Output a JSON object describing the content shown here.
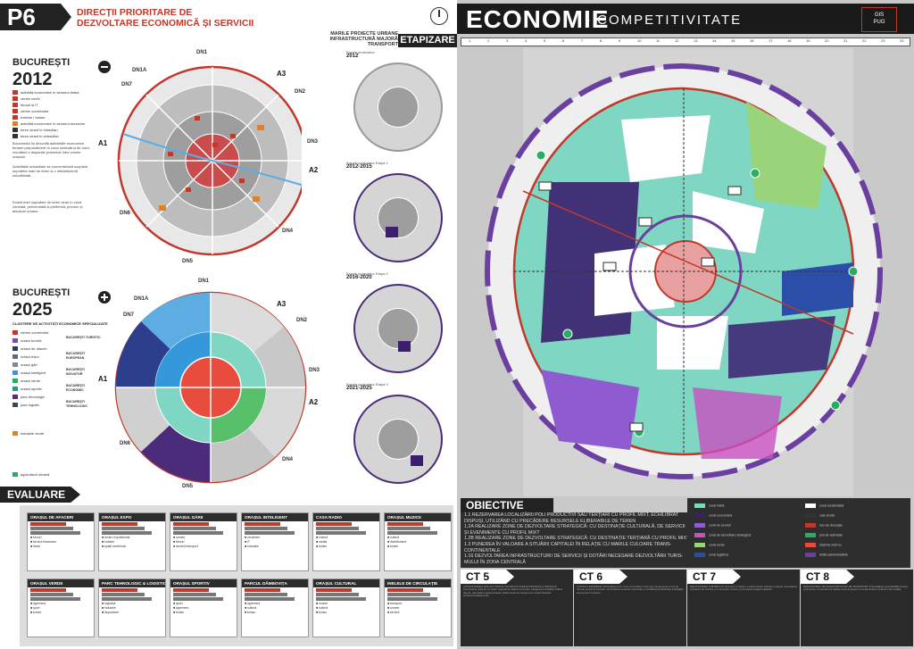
{
  "header": {
    "page_code": "P6",
    "title_line1": "DIRECȚII PRIORITARE DE",
    "title_line2": "DEZVOLTARE ECONOMICĂ ȘI SERVICII",
    "etapizare": "ETAPIZARE",
    "mari_proiecte_line1": "MARILE PROIECTE URBANE",
    "mari_proiecte_line2": "INFRASTRUCTURĂ MAJORĂ TRANSPORT"
  },
  "section2012": {
    "city": "BUCUREȘTI",
    "year": "2012",
    "legend": [
      {
        "label": "activități economice în sectorul terțiar",
        "color": "#c0392b"
      },
      {
        "label": "centre vechi",
        "color": "#c0392b"
      },
      {
        "label": "birouri și IT",
        "color": "#c0392b"
      },
      {
        "label": "centre comerciale",
        "color": "#c0392b"
      },
      {
        "label": "hoteluri / turism",
        "color": "#c0392b"
      },
      {
        "label": "activități economice în sectorul secundar",
        "color": "#e67e22"
      },
      {
        "label": "teren virant în intravilan",
        "color": "#333333"
      },
      {
        "label": "teren virant în extravilan",
        "color": "#333333"
      }
    ],
    "text1": "Bucureștiul își dezvoltă activitățile economice terțiare preponderent în zona centrală și de nord, rezultând o dispariție puternică între zonele orașului.",
    "text2": "Activitățile industriale se concentrează ocupând suprafețe mari de teren și o infrastructură subutilizată.",
    "text3": "Există mari suprafețe de teren viran în zona centrală, pericentrală și periferică, precum și afecțiuni urbane."
  },
  "section2025": {
    "city": "BUCUREȘTI",
    "year": "2025",
    "subtitle": "CLUSTERE DE ACTIVITĂȚI ECONOMICE SPECIALIZATE",
    "legend": [
      {
        "label": "centre comerciale",
        "color": "#c0392b"
      },
      {
        "label": "orașul turistic",
        "color": "#8e44ad"
      },
      {
        "label": "orașul de afaceri",
        "color": "#2c3e50"
      },
      {
        "label": "orașul expo",
        "color": "#5d6d7e"
      },
      {
        "label": "orașul gări",
        "color": "#7f8c8d"
      },
      {
        "label": "orașul inteligent",
        "color": "#3498db"
      },
      {
        "label": "orașul verde",
        "color": "#27ae60"
      },
      {
        "label": "orașul sportiv",
        "color": "#16a085"
      },
      {
        "label": "parc tehnologic",
        "color": "#5b2c6f"
      },
      {
        "label": "parc logistic",
        "color": "#34495e"
      }
    ],
    "groups": [
      "BUCUREȘTI TURISTIC",
      "BUCUREȘTI EUROPEAN",
      "BUCUREȘTI INOVATOR",
      "BUCUREȘTI ECONOMIC",
      "BUCUREȘTI TEHNOLOGIC"
    ],
    "industry_label": "industrie verde",
    "agri_label": "agricultură urbană"
  },
  "etapizare": [
    {
      "label": "Fazele proiectelor",
      "period": "2012"
    },
    {
      "label": "Fazele proiectelor Etapa 1",
      "period": "2012-2015"
    },
    {
      "label": "Fazele proiectelor Etapa 2",
      "period": "2016-2020"
    },
    {
      "label": "Fazele proiectelor Etapa 3",
      "period": "2021-2025"
    }
  ],
  "evaluare": {
    "title": "EVALUARE",
    "cards": [
      {
        "title": "ORAȘUL DE AFACERI",
        "rows": [
          "birouri",
          "servicii financiare",
          "bănci"
        ]
      },
      {
        "title": "ORAȘUL EXPO",
        "rows": [
          "centru expozițional",
          "hoteluri",
          "spații conferință"
        ]
      },
      {
        "title": "ORAȘUL GĂRII",
        "rows": [
          "comerț",
          "birouri",
          "servicii transport"
        ]
      },
      {
        "title": "ORAȘUL INTELIGENT",
        "rows": [
          "cercetare",
          "IT",
          "educație"
        ]
      },
      {
        "title": "CASA RADIO",
        "rows": [
          "cultură",
          "media",
          "turism"
        ]
      },
      {
        "title": "ORAȘUL MUZICII",
        "rows": [
          "cultură",
          "divertisment",
          "turism"
        ]
      },
      {
        "title": "ORAȘUL VERDE",
        "rows": [
          "agrement",
          "sport",
          "turism"
        ]
      },
      {
        "title": "PARC TEHNOLOGIC & LOGISTIC",
        "rows": [
          "logistică",
          "industrie",
          "depozitare"
        ]
      },
      {
        "title": "ORAȘUL SPORTIV",
        "rows": [
          "sport",
          "agrement",
          "turism"
        ]
      },
      {
        "title": "PARCUL DÂMBOVIȚA",
        "rows": [
          "agrement",
          "cultură",
          "turism"
        ]
      },
      {
        "title": "ORAȘUL CULTURAL",
        "rows": [
          "muzee",
          "cultură",
          "turism"
        ]
      },
      {
        "title": "INELELE DE CIRCULAȚIE",
        "rows": [
          "transport",
          "comerț",
          "servicii"
        ]
      }
    ]
  },
  "economie": {
    "title": "ECONOMIE",
    "subtitle": "- COMPETITIVITATE",
    "logo_line1": "GIS",
    "logo_line2": "PUG",
    "ruler": [
      "1",
      "2",
      "3",
      "4",
      "5",
      "6",
      "7",
      "8",
      "9",
      "10",
      "11",
      "12",
      "13",
      "14",
      "15",
      "16",
      "17",
      "18",
      "19",
      "20",
      "21",
      "22",
      "23",
      "24"
    ]
  },
  "objectives": {
    "title": "OBIECTIVE",
    "items": [
      "1.1 REZERVAREA LOCALIZĂRII POLI PRODUCTIVI SAU TERȚIARI CU PROFIL MIXT, ECHILIBRAT",
      "DISPUȘI, UTILIZÂND CU PRECĂDERE RESURSELE ELIBERABILE DE TEREN",
      "1.2A REALIZARE ZONE DE DEZVOLTARE STRATEGICĂ: CU DESTINAȚIE CULTURALĂ, DE SERVICII",
      "ȘI EVENIMENTE CU PROFIL MIXT",
      "1.2B REALIZARE ZONE DE DEZVOLTARE STRATEGICĂ: CU DESTINAȚIE TERȚIARĂ CU PROFIL MIXT",
      "1.3 PUNEREA ÎN VALOARE A SITUĂRII CAPITALEI ÎN RELAȚIE CU MARILE CULOARE TRANS-",
      "CONTINENTALE",
      "1.16 DEZVOLTAREA INFRASTRUCTURII DE SERVICII ȘI DOTĂRI NECESARE DEZVOLTĂRII TURIS-",
      "MULUI ÎN ZONA CENTRALĂ"
    ]
  },
  "map_legend": [
    {
      "label": "zonă mixtă",
      "color": "#7fd6c2"
    },
    {
      "label": "zonă economică",
      "color": "#3b1f6e"
    },
    {
      "label": "zonă de servicii",
      "color": "#8e5bd1"
    },
    {
      "label": "zonă de dezvoltare strategică",
      "color": "#c850c0"
    },
    {
      "label": "zonă verde",
      "color": "#9ad47a"
    },
    {
      "label": "zonă logistică",
      "color": "#2b4fa8"
    },
    {
      "label": "zonă rezidențială",
      "color": "#ffffff"
    },
    {
      "label": "cale ferată",
      "color": "#333333"
    },
    {
      "label": "inel de circulație",
      "color": "#c0392b"
    },
    {
      "label": "poli de activitate",
      "color": "#27ae60"
    },
    {
      "label": "stații de metrou",
      "color": "#e74c3c"
    },
    {
      "label": "limită administrativă",
      "color": "#6a3fa0"
    }
  ],
  "ct": [
    {
      "code": "CT 5",
      "text": "CONSOLIDAREA ROLULUI DE POL DE DEZVOLTARE ECONOMICĂ A ORAȘULUI. Promovarea orașului ca centru regional de afaceri și inovare, atragerea investițiilor străine directe, dezvoltarea parteneriatelor public-privat și crearea unui mediu favorabil antreprenoriatului local."
    },
    {
      "code": "CT 6",
      "text": "CAPITALA MODERNĂ. Dezvoltarea unor zone cu funcțiuni mixte care să genereze locuri de muncă, servicii și locuințe, consolidarea centrelor secundare și echilibrarea distribuției activităților economice în teritoriu."
    },
    {
      "code": "CT 7",
      "text": "DEZVOLTAREA TURISMULUI. Punerea în valoare a patrimoniului cultural și natural, dezvoltarea infrastructurii turistice și a serviciilor conexe, promovarea imaginii capitalei."
    },
    {
      "code": "CT 8",
      "text": "DEZVOLTAREA DE INFRASTRUCTURI DE TRANSPORT. Îmbunătățirea accesibilității zonelor economice, conectarea la rețelele trans-europene și modernizarea nodurilor intermodale."
    }
  ]
}
